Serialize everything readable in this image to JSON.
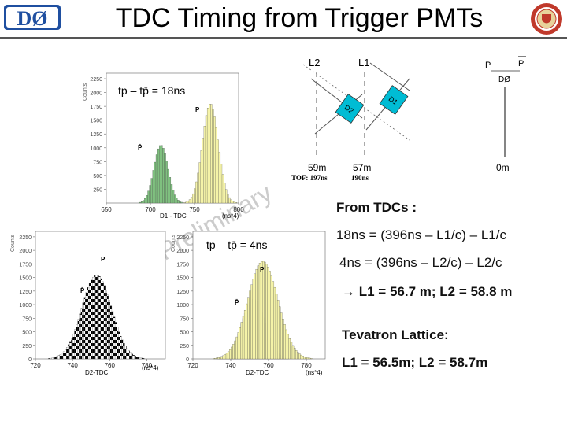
{
  "header": {
    "title": "TDC Timing from Trigger PMTs",
    "logo_left": "DØ",
    "logo_right_icon": "university-seal-icon"
  },
  "watermark": "DØ Preliminary",
  "top_histogram": {
    "annotation": "tp – tp̄ = 18ns",
    "x_axis_label": "D1 - TDC",
    "x_axis_unit": "(ns*4)",
    "y_axis_label": "Counts",
    "x_ticks": [
      "650",
      "700",
      "750",
      "800"
    ],
    "y_ticks": [
      "250",
      "500",
      "750",
      "1000",
      "1250",
      "1500",
      "1750",
      "2000",
      "2250"
    ],
    "peak_label_pbar": "P̄",
    "peak_label_p": "P"
  },
  "bottom_left_histogram": {
    "x_axis_label": "D2-TDC",
    "x_axis_unit": "(ns*4)",
    "y_axis_label": "Counts",
    "x_ticks": [
      "720",
      "740",
      "760",
      "780"
    ],
    "y_ticks": [
      "0",
      "250",
      "500",
      "750",
      "1000",
      "1250",
      "1500",
      "1750",
      "2000",
      "2250"
    ],
    "peak_label_p": "P",
    "peak_label_pbar": "P̄"
  },
  "bottom_right_histogram": {
    "annotation": "tp – tp̄ = 4ns",
    "x_axis_label": "D2-TDC",
    "x_axis_unit": "(ns*4)",
    "y_axis_label": "Counts",
    "x_ticks": [
      "720",
      "740",
      "760",
      "780"
    ],
    "y_ticks": [
      "0",
      "250",
      "500",
      "750",
      "1000",
      "1250",
      "1500",
      "1750",
      "2000",
      "2250"
    ],
    "peak_label_pbar": "P̄",
    "peak_label_p": "P"
  },
  "diagram": {
    "labels": {
      "l2": "L2",
      "l1": "L1",
      "p": "P",
      "pbar": "P",
      "d0": "DØ"
    },
    "distances": {
      "l2": "59m",
      "l1": "57m",
      "d0": "0m"
    },
    "tof_label": "TOF: 197ns",
    "tof_l1": "190ns",
    "bunch_d2": "D2",
    "bunch_d1": "D1"
  },
  "results": {
    "heading": "From TDCs :",
    "eq1": "18ns = (396ns – L1/c) – L1/c",
    "eq2": "4ns = (396ns – L2/c) – L2/c",
    "result_arrow_icon": "arrow-right-icon",
    "result": "L1 = 56.7 m; L2 = 58.8 m",
    "lattice_heading": "Tevatron Lattice:",
    "lattice_values": "L1 = 56.5m; L2 = 58.7m"
  },
  "colors": {
    "p_peak": "#f5f3a8",
    "pbar_peak": "#7fc07f",
    "bunch_fill": "#00bcd4",
    "checker": "#000000"
  },
  "chart_data": [
    {
      "type": "bar",
      "name_hint": "D1-TDC",
      "xlabel": "D1 - TDC",
      "x_unit": "(ns*4)",
      "xlim": [
        650,
        800
      ],
      "ylim": [
        0,
        2350
      ],
      "series": [
        {
          "name": "P̄",
          "peak_x": 712,
          "width": 8,
          "peak_y": 1050
        },
        {
          "name": "P",
          "peak_x": 768,
          "width": 9,
          "peak_y": 1800
        }
      ]
    },
    {
      "type": "bar",
      "name_hint": "D2-TDC left",
      "xlabel": "D2-TDC",
      "x_unit": "(ns*4)",
      "xlim": [
        720,
        790
      ],
      "ylim": [
        0,
        2350
      ],
      "series": [
        {
          "name": "P",
          "peak_x": 753,
          "width": 8,
          "peak_y": 1550
        }
      ]
    },
    {
      "type": "bar",
      "name_hint": "D2-TDC right",
      "xlabel": "D2-TDC",
      "x_unit": "(ns*4)",
      "xlim": [
        720,
        790
      ],
      "ylim": [
        0,
        2350
      ],
      "series": [
        {
          "name": "P̄",
          "peak_x": 752,
          "width": 6,
          "peak_y": 1100
        },
        {
          "name": "P",
          "peak_x": 757,
          "width": 8,
          "peak_y": 1800
        }
      ]
    }
  ]
}
